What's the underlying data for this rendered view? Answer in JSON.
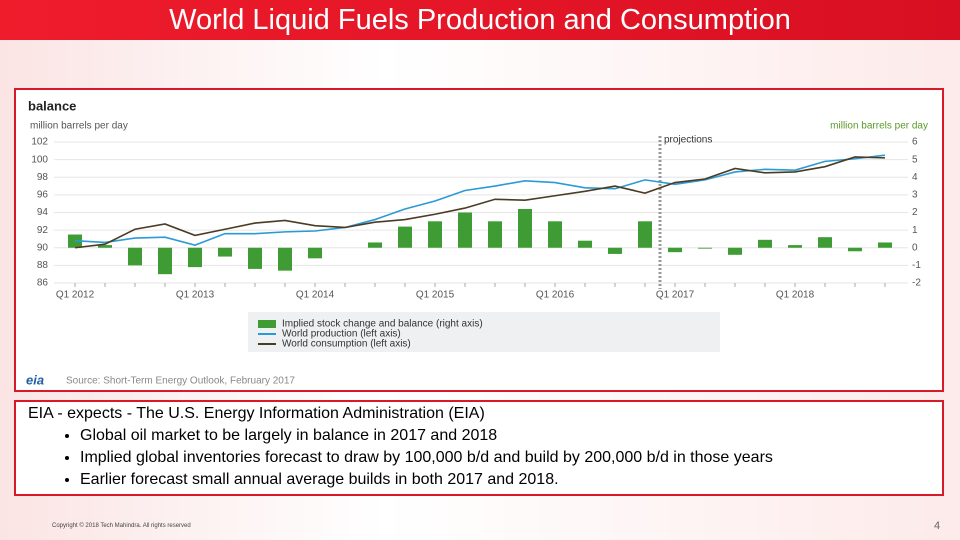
{
  "slide_title": "World Liquid Fuels Production and Consumption",
  "chart_data": {
    "type": "combo",
    "title": "balance",
    "ylabel": "million barrels per day",
    "y2label": "million barrels per day",
    "annotation": "projections",
    "source": "Source: Short-Term Energy Outlook, February 2017",
    "logo": "eia",
    "categories": [
      "Q1 2012",
      null,
      null,
      null,
      "Q1 2013",
      null,
      null,
      null,
      "Q1 2014",
      null,
      null,
      null,
      "Q1 2015",
      null,
      null,
      null,
      "Q1 2016",
      null,
      null,
      null,
      "Q1 2017",
      null,
      null,
      null,
      "Q1 2018",
      null,
      null,
      null
    ],
    "series": [
      {
        "name": "Implied stock change and balance (right axis)",
        "type": "bar",
        "axis": "y2",
        "color": "#3f9c35",
        "values": [
          0.75,
          0.15,
          -1.0,
          -1.5,
          -1.1,
          -0.5,
          -1.2,
          -1.3,
          -0.6,
          0,
          0.3,
          1.2,
          1.5,
          2.0,
          1.5,
          2.2,
          1.5,
          0.4,
          -0.35,
          1.5,
          -0.25,
          -0.05,
          -0.4,
          0.45,
          0.15,
          0.6,
          -0.2,
          0.3
        ]
      },
      {
        "name": "World production (left axis)",
        "type": "line",
        "color": "#2a9ad6",
        "values": [
          90.8,
          90.6,
          91.1,
          91.2,
          90.3,
          91.6,
          91.6,
          91.8,
          91.9,
          92.3,
          93.2,
          94.4,
          95.3,
          96.5,
          97.0,
          97.6,
          97.4,
          96.8,
          96.7,
          97.7,
          97.2,
          97.7,
          98.6,
          98.9,
          98.8,
          99.8,
          100.1,
          100.5
        ]
      },
      {
        "name": "World consumption (left axis)",
        "type": "line",
        "color": "#4b3b22",
        "values": [
          90.0,
          90.4,
          92.1,
          92.7,
          91.4,
          92.1,
          92.8,
          93.1,
          92.5,
          92.3,
          92.9,
          93.2,
          93.8,
          94.5,
          95.5,
          95.4,
          95.9,
          96.4,
          97.0,
          96.2,
          97.4,
          97.8,
          99.0,
          98.5,
          98.6,
          99.2,
          100.3,
          100.2
        ]
      }
    ],
    "ylim": [
      86,
      102
    ],
    "yticks": [
      86,
      88,
      90,
      92,
      94,
      96,
      98,
      100,
      102
    ],
    "y2lim": [
      -2,
      6
    ],
    "y2ticks": [
      -2,
      -1,
      0,
      1,
      2,
      3,
      4,
      5,
      6
    ]
  },
  "text_box": {
    "heading": "EIA - expects - The U.S. Energy Information Administration (EIA)",
    "bullets": [
      "Global oil market to be largely in balance in 2017 and 2018",
      "Implied global inventories forecast to draw by 100,000 b/d and build by 200,000 b/d in those years",
      "Earlier  forecast small annual average builds in both 2017 and 2018."
    ]
  },
  "footer": {
    "copyright": "Copyright © 2018 Tech Mahindra. All rights reserved",
    "page": "4"
  }
}
